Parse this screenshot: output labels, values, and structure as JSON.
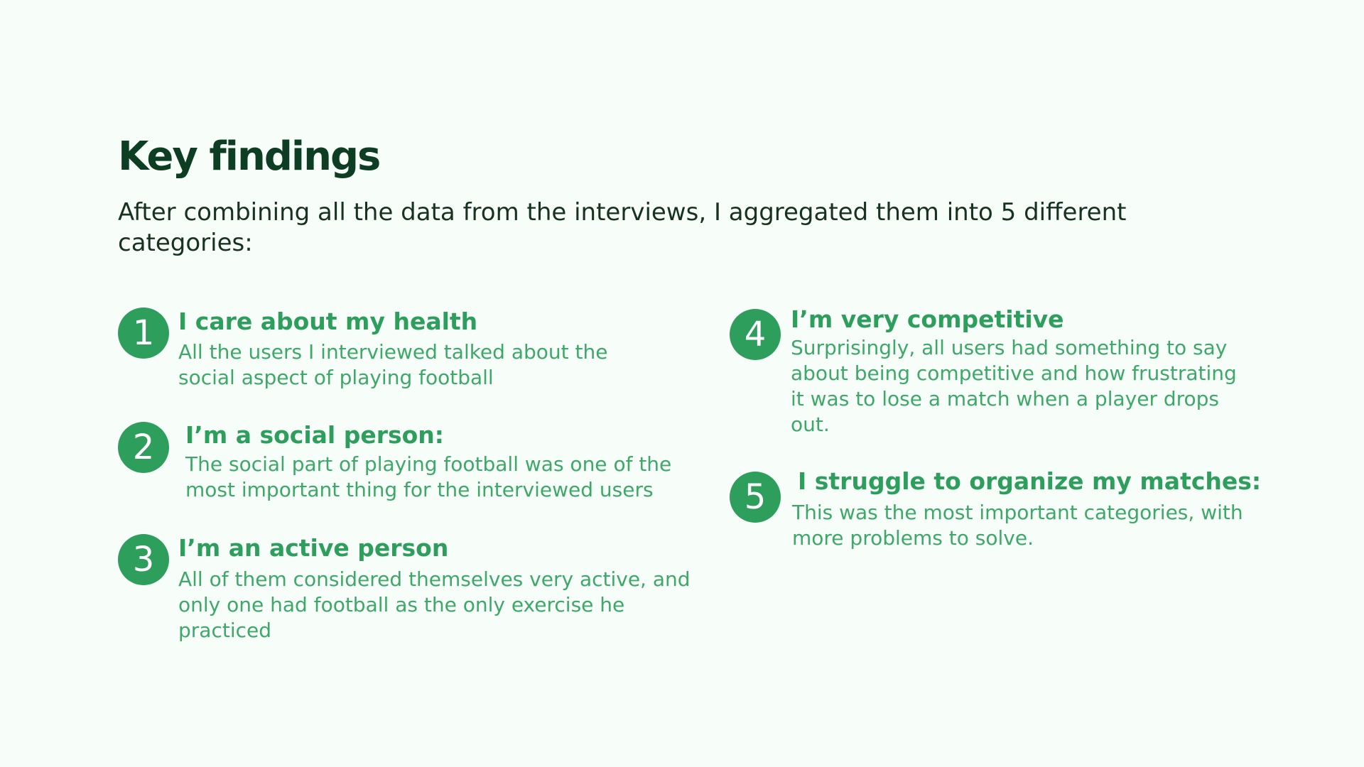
{
  "page": {
    "title": "Key findings",
    "intro": "After combining all the data from the interviews, I aggregated them into 5 different categories:"
  },
  "colors": {
    "background": "#f7fdf9",
    "title": "#0d3d23",
    "text": "#17321f",
    "accent": "#2e9e5c"
  },
  "findings": [
    {
      "number": "1",
      "title": "I care about my health",
      "description": "All the users I interviewed talked about the social aspect of playing football"
    },
    {
      "number": "2",
      "title": "I’m a social person:",
      "description": "The social part of playing football was one of the most important thing for the interviewed users"
    },
    {
      "number": "3",
      "title": "I’m an active person",
      "description": "All of them considered themselves very active, and only one had football as the only exercise he practiced"
    },
    {
      "number": "4",
      "title": "I’m very competitive",
      "description": "Surprisingly, all users had something to say about being competitive and how frustrating it was to lose a match when a player drops out."
    },
    {
      "number": "5",
      "title": "I struggle to organize my matches:",
      "description": "This was the most important categories, with more problems to solve."
    }
  ]
}
